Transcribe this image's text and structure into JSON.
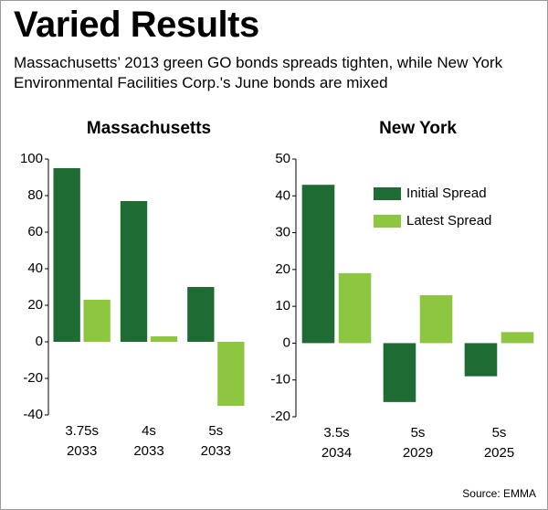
{
  "title": "Varied Results",
  "subtitle": "Massachusetts’ 2013 green GO bonds spreads tighten, while New York Environmental Facilities Corp.'s June bonds are mixed",
  "source": "Source: EMMA",
  "chart_data": [
    {
      "type": "bar",
      "title": "Massachusetts",
      "categories": [
        [
          "3.75s",
          "2033"
        ],
        [
          "4s",
          "2033"
        ],
        [
          "5s",
          "2033"
        ]
      ],
      "series": [
        {
          "color": "#1e6b34",
          "values": [
            95,
            77,
            30
          ]
        },
        {
          "color": "#8dc63f",
          "values": [
            23,
            3,
            -35
          ]
        }
      ],
      "ylim": [
        -40,
        100
      ],
      "yticks": [
        -40,
        -20,
        0,
        20,
        40,
        60,
        80,
        100
      ],
      "legend": false
    },
    {
      "type": "bar",
      "title": "New York",
      "categories": [
        [
          "3.5s",
          "2034"
        ],
        [
          "5s",
          "2029"
        ],
        [
          "5s",
          "2025"
        ]
      ],
      "series": [
        {
          "name": "Initial Spread",
          "color": "#1e6b34",
          "values": [
            43,
            -16,
            -9
          ]
        },
        {
          "name": "Latest Spread",
          "color": "#8dc63f",
          "values": [
            19,
            13,
            3
          ]
        }
      ],
      "ylim": [
        -20,
        50
      ],
      "yticks": [
        -20,
        -10,
        0,
        10,
        20,
        30,
        40,
        50
      ],
      "legend": true
    }
  ]
}
